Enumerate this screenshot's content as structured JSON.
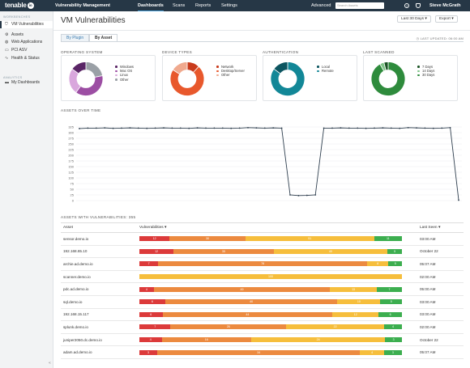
{
  "topbar": {
    "logo": "tenable",
    "logo_suffix": "io",
    "product": "Vulnerability Management",
    "nav": [
      "Dashboards",
      "Scans",
      "Reports",
      "Settings"
    ],
    "active_nav": "Dashboards",
    "advanced": "Advanced",
    "search_placeholder": "Search Assets",
    "help_icon": "question-icon",
    "bell_icon": "bell-icon",
    "user": "Steve McGrath"
  },
  "sidebar": {
    "workbenches_label": "WORKBENCHES",
    "items": [
      {
        "label": "VM Vulnerabilities",
        "icon": "shield-icon",
        "active": true
      },
      {
        "label": "Assets",
        "icon": "gear-icon"
      },
      {
        "label": "Web Applications",
        "icon": "globe-icon"
      },
      {
        "label": "PCI ASV",
        "icon": "card-icon"
      },
      {
        "label": "Health & Status",
        "icon": "pulse-icon"
      }
    ],
    "analytics_label": "ANALYTICS",
    "analytics_items": [
      {
        "label": "My Dashboards",
        "icon": "folder-icon"
      }
    ],
    "collapse_icon": "double-chevron-left-icon"
  },
  "header": {
    "title": "VM Vulnerabilities",
    "date_filter": "Last 30 Days",
    "export": "Export"
  },
  "tabs": [
    {
      "label": "By Plugin",
      "active": false
    },
    {
      "label": "By Asset",
      "active": true
    }
  ],
  "last_updated": "LAST UPDATED: 06:00 AM",
  "donuts": [
    {
      "title": "OPERATING SYSTEM",
      "slices": [
        {
          "label": "Windows",
          "value": 22,
          "color": "#9aa0a6"
        },
        {
          "label": "Mac OS",
          "value": 38,
          "color": "#9c4ea3"
        },
        {
          "label": "Linux",
          "value": 25,
          "color": "#d9a7dd"
        },
        {
          "label": "Other",
          "value": 15,
          "color": "#5a2566"
        }
      ]
    },
    {
      "title": "DEVICE TYPES",
      "slices": [
        {
          "label": "Network",
          "value": 12,
          "color": "#c93b1c"
        },
        {
          "label": "Desktop/Server",
          "value": 72,
          "color": "#e8582c"
        },
        {
          "label": "Other",
          "value": 16,
          "color": "#f0a98e"
        }
      ]
    },
    {
      "title": "AUTHENTICATION",
      "slices": [
        {
          "label": "Local",
          "value": 85,
          "color": "#128797"
        },
        {
          "label": "Remote",
          "value": 15,
          "color": "#0c5560"
        }
      ]
    },
    {
      "title": "LAST SCANNED",
      "slices": [
        {
          "label": "7 Days",
          "value": 92,
          "color": "#2e8b3c"
        },
        {
          "label": "14 Days",
          "value": 4,
          "color": "#7fc488"
        },
        {
          "label": "30 Days",
          "value": 4,
          "color": "#1b5425"
        }
      ]
    }
  ],
  "line_title": "ASSETS OVER TIME",
  "chart_data": {
    "type": "line",
    "title": "ASSETS OVER TIME",
    "ylim": [
      0,
      350
    ],
    "yticks": [
      0,
      25,
      50,
      75,
      100,
      125,
      150,
      175,
      200,
      225,
      250,
      275,
      300,
      325
    ],
    "values": [
      318,
      320,
      320,
      321,
      319,
      320,
      321,
      320,
      319,
      320,
      321,
      320,
      320,
      319,
      321,
      320,
      320,
      320,
      319,
      320,
      322,
      321,
      320,
      321,
      320,
      25,
      22,
      23,
      25,
      320,
      320,
      321,
      320,
      320,
      319,
      320,
      321,
      320,
      319,
      322,
      321,
      320,
      319,
      320,
      322,
      2
    ],
    "grid": true
  },
  "table": {
    "title": "ASSETS WITH VULNERABILITIES: 355",
    "columns": [
      "Asset",
      "Vulnerabilities",
      "Last Seen"
    ],
    "rows": [
      {
        "asset": "sensor.demo.io",
        "segs": [
          12,
          30,
          51,
          11
        ],
        "labels": [
          "12",
          "30",
          "51",
          "11"
        ],
        "last": "03:00 AM"
      },
      {
        "asset": "192.168.65.10",
        "segs": [
          12,
          35,
          40,
          5
        ],
        "labels": [
          "12",
          "35",
          "40",
          "5"
        ],
        "last": "October 22"
      },
      {
        "asset": "archie.ad.demo.io",
        "segs": [
          7,
          78,
          8,
          5
        ],
        "labels": [
          "7",
          "78",
          "8",
          "5"
        ],
        "last": "05:07 AM"
      },
      {
        "asset": "scanner.demo.io",
        "segs": [
          0,
          0,
          100,
          0
        ],
        "labels": [
          "",
          "",
          "100",
          ""
        ],
        "last": "02:00 AM"
      },
      {
        "asset": "pdc.ad.demo.io",
        "segs": [
          4,
          49,
          13,
          7
        ],
        "labels": [
          "4",
          "49",
          "13",
          "7"
        ],
        "last": "05:00 AM"
      },
      {
        "asset": "sql.demo.io",
        "segs": [
          6,
          40,
          10,
          5
        ],
        "labels": [
          "6",
          "40",
          "10",
          "5"
        ],
        "last": "03:00 AM"
      },
      {
        "asset": "192.168.15.117",
        "segs": [
          6,
          44,
          12,
          6
        ],
        "labels": [
          "6",
          "44",
          "12",
          "6"
        ],
        "last": "03:00 AM"
      },
      {
        "asset": "splunk.demo.io",
        "segs": [
          7,
          26,
          22,
          4
        ],
        "labels": [
          "7",
          "26",
          "22",
          "4"
        ],
        "last": "02:00 AM"
      },
      {
        "asset": "juniper2050.dc.demo.io",
        "segs": [
          4,
          16,
          24,
          3
        ],
        "labels": [
          "4",
          "16",
          "24",
          "3"
        ],
        "last": "October 22"
      },
      {
        "asset": "adam.ad.demo.io",
        "segs": [
          3,
          34,
          4,
          3
        ],
        "labels": [
          "3",
          "34",
          "4",
          "3"
        ],
        "last": "05:07 AM"
      }
    ]
  }
}
